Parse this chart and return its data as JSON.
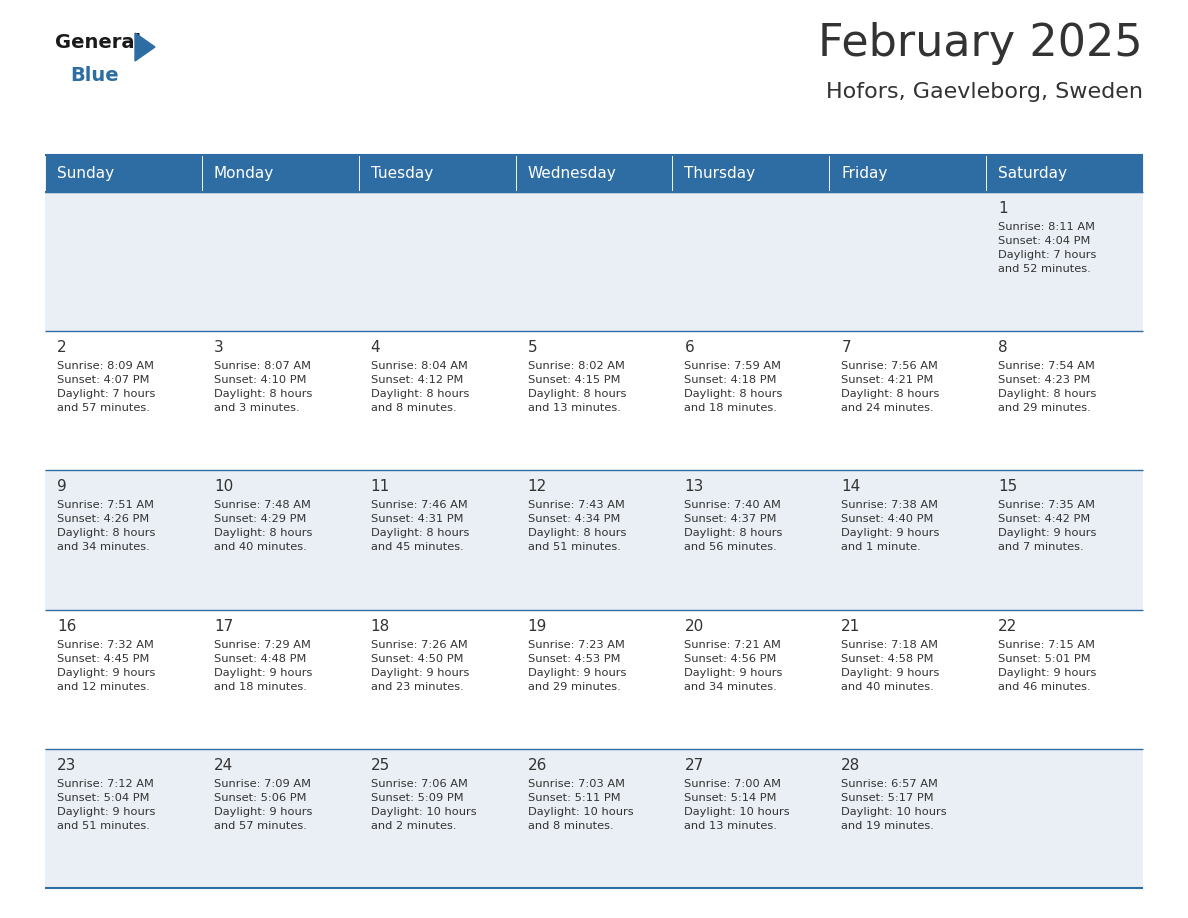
{
  "title": "February 2025",
  "subtitle": "Hofors, Gaevleborg, Sweden",
  "header_color": "#2E6DA4",
  "header_text_color": "#FFFFFF",
  "days_of_week": [
    "Sunday",
    "Monday",
    "Tuesday",
    "Wednesday",
    "Thursday",
    "Friday",
    "Saturday"
  ],
  "background_color": "#FFFFFF",
  "cell_bg_even": "#EAEFF5",
  "cell_bg_odd": "#FFFFFF",
  "divider_color": "#2E6DA4",
  "text_color": "#333333",
  "logo_general_color": "#1a1a1a",
  "logo_blue_color": "#2E6DA4",
  "weeks": [
    [
      {
        "day": null,
        "info": null
      },
      {
        "day": null,
        "info": null
      },
      {
        "day": null,
        "info": null
      },
      {
        "day": null,
        "info": null
      },
      {
        "day": null,
        "info": null
      },
      {
        "day": null,
        "info": null
      },
      {
        "day": 1,
        "info": "Sunrise: 8:11 AM\nSunset: 4:04 PM\nDaylight: 7 hours\nand 52 minutes."
      }
    ],
    [
      {
        "day": 2,
        "info": "Sunrise: 8:09 AM\nSunset: 4:07 PM\nDaylight: 7 hours\nand 57 minutes."
      },
      {
        "day": 3,
        "info": "Sunrise: 8:07 AM\nSunset: 4:10 PM\nDaylight: 8 hours\nand 3 minutes."
      },
      {
        "day": 4,
        "info": "Sunrise: 8:04 AM\nSunset: 4:12 PM\nDaylight: 8 hours\nand 8 minutes."
      },
      {
        "day": 5,
        "info": "Sunrise: 8:02 AM\nSunset: 4:15 PM\nDaylight: 8 hours\nand 13 minutes."
      },
      {
        "day": 6,
        "info": "Sunrise: 7:59 AM\nSunset: 4:18 PM\nDaylight: 8 hours\nand 18 minutes."
      },
      {
        "day": 7,
        "info": "Sunrise: 7:56 AM\nSunset: 4:21 PM\nDaylight: 8 hours\nand 24 minutes."
      },
      {
        "day": 8,
        "info": "Sunrise: 7:54 AM\nSunset: 4:23 PM\nDaylight: 8 hours\nand 29 minutes."
      }
    ],
    [
      {
        "day": 9,
        "info": "Sunrise: 7:51 AM\nSunset: 4:26 PM\nDaylight: 8 hours\nand 34 minutes."
      },
      {
        "day": 10,
        "info": "Sunrise: 7:48 AM\nSunset: 4:29 PM\nDaylight: 8 hours\nand 40 minutes."
      },
      {
        "day": 11,
        "info": "Sunrise: 7:46 AM\nSunset: 4:31 PM\nDaylight: 8 hours\nand 45 minutes."
      },
      {
        "day": 12,
        "info": "Sunrise: 7:43 AM\nSunset: 4:34 PM\nDaylight: 8 hours\nand 51 minutes."
      },
      {
        "day": 13,
        "info": "Sunrise: 7:40 AM\nSunset: 4:37 PM\nDaylight: 8 hours\nand 56 minutes."
      },
      {
        "day": 14,
        "info": "Sunrise: 7:38 AM\nSunset: 4:40 PM\nDaylight: 9 hours\nand 1 minute."
      },
      {
        "day": 15,
        "info": "Sunrise: 7:35 AM\nSunset: 4:42 PM\nDaylight: 9 hours\nand 7 minutes."
      }
    ],
    [
      {
        "day": 16,
        "info": "Sunrise: 7:32 AM\nSunset: 4:45 PM\nDaylight: 9 hours\nand 12 minutes."
      },
      {
        "day": 17,
        "info": "Sunrise: 7:29 AM\nSunset: 4:48 PM\nDaylight: 9 hours\nand 18 minutes."
      },
      {
        "day": 18,
        "info": "Sunrise: 7:26 AM\nSunset: 4:50 PM\nDaylight: 9 hours\nand 23 minutes."
      },
      {
        "day": 19,
        "info": "Sunrise: 7:23 AM\nSunset: 4:53 PM\nDaylight: 9 hours\nand 29 minutes."
      },
      {
        "day": 20,
        "info": "Sunrise: 7:21 AM\nSunset: 4:56 PM\nDaylight: 9 hours\nand 34 minutes."
      },
      {
        "day": 21,
        "info": "Sunrise: 7:18 AM\nSunset: 4:58 PM\nDaylight: 9 hours\nand 40 minutes."
      },
      {
        "day": 22,
        "info": "Sunrise: 7:15 AM\nSunset: 5:01 PM\nDaylight: 9 hours\nand 46 minutes."
      }
    ],
    [
      {
        "day": 23,
        "info": "Sunrise: 7:12 AM\nSunset: 5:04 PM\nDaylight: 9 hours\nand 51 minutes."
      },
      {
        "day": 24,
        "info": "Sunrise: 7:09 AM\nSunset: 5:06 PM\nDaylight: 9 hours\nand 57 minutes."
      },
      {
        "day": 25,
        "info": "Sunrise: 7:06 AM\nSunset: 5:09 PM\nDaylight: 10 hours\nand 2 minutes."
      },
      {
        "day": 26,
        "info": "Sunrise: 7:03 AM\nSunset: 5:11 PM\nDaylight: 10 hours\nand 8 minutes."
      },
      {
        "day": 27,
        "info": "Sunrise: 7:00 AM\nSunset: 5:14 PM\nDaylight: 10 hours\nand 13 minutes."
      },
      {
        "day": 28,
        "info": "Sunrise: 6:57 AM\nSunset: 5:17 PM\nDaylight: 10 hours\nand 19 minutes."
      },
      {
        "day": null,
        "info": null
      }
    ]
  ]
}
